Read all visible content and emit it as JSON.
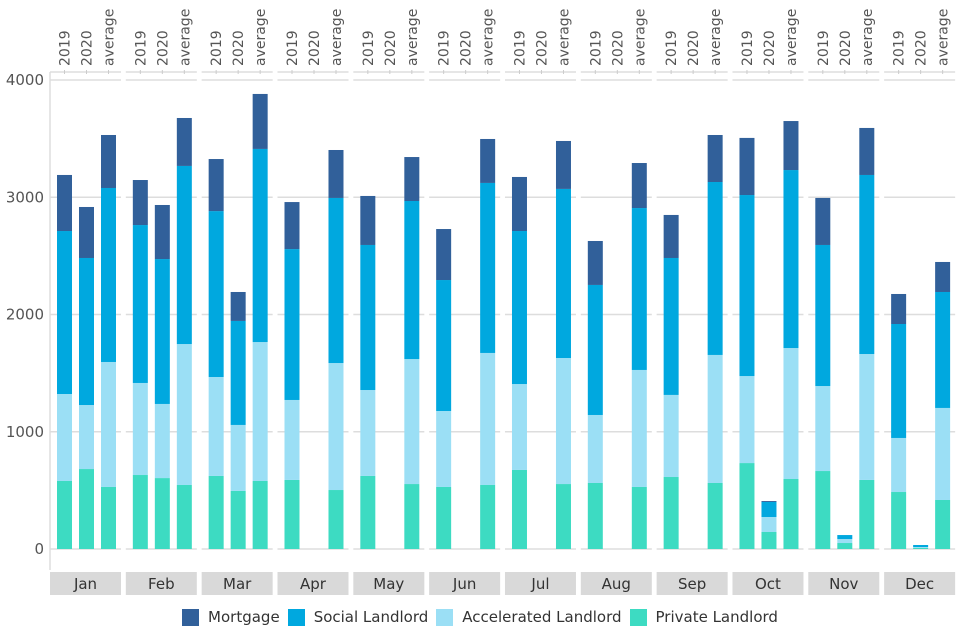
{
  "colors": {
    "Mortgage": "#31609a",
    "Social Landlord": "#00a8df",
    "Accelerated Landlord": "#9bdff5",
    "Private Landlord": "#3ddbc2",
    "grid": "#dddddd",
    "facet_strip": "#d9d9d9"
  },
  "legend": [
    {
      "name": "Mortgage"
    },
    {
      "name": "Social Landlord"
    },
    {
      "name": "Accelerated Landlord"
    },
    {
      "name": "Private Landlord"
    }
  ],
  "chart_data": {
    "type": "bar",
    "stacked": true,
    "faceted_by": "month",
    "title": "",
    "xlabel": "",
    "ylabel": "",
    "ylim": [
      0,
      4000
    ],
    "yticks": [
      0,
      1000,
      2000,
      3000,
      4000
    ],
    "grid": true,
    "legend_position": "bottom",
    "facets": [
      "Jan",
      "Feb",
      "Mar",
      "Apr",
      "May",
      "Jun",
      "Jul",
      "Aug",
      "Sep",
      "Oct",
      "Nov",
      "Dec"
    ],
    "categories": [
      "2019",
      "2020",
      "average"
    ],
    "series_order": [
      "Private Landlord",
      "Accelerated Landlord",
      "Social Landlord",
      "Mortgage"
    ],
    "values": {
      "Jan": {
        "2019": {
          "Private Landlord": 580,
          "Accelerated Landlord": 742,
          "Social Landlord": 1390,
          "Mortgage": 478
        },
        "2020": {
          "Private Landlord": 682,
          "Accelerated Landlord": 546,
          "Social Landlord": 1254,
          "Mortgage": 435
        },
        "average": {
          "Private Landlord": 529,
          "Accelerated Landlord": 1066,
          "Social Landlord": 1484,
          "Mortgage": 452
        }
      },
      "Feb": {
        "2019": {
          "Private Landlord": 631,
          "Accelerated Landlord": 785,
          "Social Landlord": 1347,
          "Mortgage": 384
        },
        "2020": {
          "Private Landlord": 605,
          "Accelerated Landlord": 632,
          "Social Landlord": 1236,
          "Mortgage": 461
        },
        "average": {
          "Private Landlord": 546,
          "Accelerated Landlord": 1202,
          "Social Landlord": 1519,
          "Mortgage": 409
        }
      },
      "Mar": {
        "2019": {
          "Private Landlord": 623,
          "Accelerated Landlord": 844,
          "Social Landlord": 1415,
          "Mortgage": 444
        },
        "2020": {
          "Private Landlord": 495,
          "Accelerated Landlord": 563,
          "Social Landlord": 887,
          "Mortgage": 247
        },
        "average": {
          "Private Landlord": 580,
          "Accelerated Landlord": 1185,
          "Social Landlord": 1647,
          "Mortgage": 469
        }
      },
      "Apr": {
        "2019": {
          "Private Landlord": 589,
          "Accelerated Landlord": 682,
          "Social Landlord": 1287,
          "Mortgage": 401
        },
        "2020": {
          "Private Landlord": 0,
          "Accelerated Landlord": 0,
          "Social Landlord": 0,
          "Mortgage": 0
        },
        "average": {
          "Private Landlord": 503,
          "Accelerated Landlord": 1083,
          "Social Landlord": 1408,
          "Mortgage": 409
        }
      },
      "May": {
        "2019": {
          "Private Landlord": 623,
          "Accelerated Landlord": 733,
          "Social Landlord": 1237,
          "Mortgage": 418
        },
        "2020": {
          "Private Landlord": 0,
          "Accelerated Landlord": 0,
          "Social Landlord": 0,
          "Mortgage": 0
        },
        "average": {
          "Private Landlord": 554,
          "Accelerated Landlord": 1066,
          "Social Landlord": 1348,
          "Mortgage": 375
        }
      },
      "Jun": {
        "2019": {
          "Private Landlord": 529,
          "Accelerated Landlord": 648,
          "Social Landlord": 1117,
          "Mortgage": 435
        },
        "2020": {
          "Private Landlord": 0,
          "Accelerated Landlord": 0,
          "Social Landlord": 0,
          "Mortgage": 0
        },
        "average": {
          "Private Landlord": 546,
          "Accelerated Landlord": 1126,
          "Social Landlord": 1450,
          "Mortgage": 375
        }
      },
      "Jul": {
        "2019": {
          "Private Landlord": 674,
          "Accelerated Landlord": 733,
          "Social Landlord": 1305,
          "Mortgage": 461
        },
        "2020": {
          "Private Landlord": 0,
          "Accelerated Landlord": 0,
          "Social Landlord": 0,
          "Mortgage": 0
        },
        "average": {
          "Private Landlord": 554,
          "Accelerated Landlord": 1075,
          "Social Landlord": 1442,
          "Mortgage": 409
        }
      },
      "Aug": {
        "2019": {
          "Private Landlord": 563,
          "Accelerated Landlord": 580,
          "Social Landlord": 1109,
          "Mortgage": 375
        },
        "2020": {
          "Private Landlord": 0,
          "Accelerated Landlord": 0,
          "Social Landlord": 0,
          "Mortgage": 0
        },
        "average": {
          "Private Landlord": 529,
          "Accelerated Landlord": 998,
          "Social Landlord": 1381,
          "Mortgage": 384
        }
      },
      "Sep": {
        "2019": {
          "Private Landlord": 614,
          "Accelerated Landlord": 700,
          "Social Landlord": 1168,
          "Mortgage": 367
        },
        "2020": {
          "Private Landlord": 0,
          "Accelerated Landlord": 0,
          "Social Landlord": 0,
          "Mortgage": 0
        },
        "average": {
          "Private Landlord": 563,
          "Accelerated Landlord": 1092,
          "Social Landlord": 1475,
          "Mortgage": 401
        }
      },
      "Oct": {
        "2019": {
          "Private Landlord": 733,
          "Accelerated Landlord": 742,
          "Social Landlord": 1544,
          "Mortgage": 487
        },
        "2020": {
          "Private Landlord": 145,
          "Accelerated Landlord": 128,
          "Social Landlord": 128,
          "Mortgage": 8
        },
        "average": {
          "Private Landlord": 597,
          "Accelerated Landlord": 1117,
          "Social Landlord": 1518,
          "Mortgage": 418
        }
      },
      "Nov": {
        "2019": {
          "Private Landlord": 665,
          "Accelerated Landlord": 725,
          "Social Landlord": 1203,
          "Mortgage": 401
        },
        "2020": {
          "Private Landlord": 51,
          "Accelerated Landlord": 34,
          "Social Landlord": 34,
          "Mortgage": 0
        },
        "average": {
          "Private Landlord": 589,
          "Accelerated Landlord": 1074,
          "Social Landlord": 1527,
          "Mortgage": 401
        }
      },
      "Dec": {
        "2019": {
          "Private Landlord": 486,
          "Accelerated Landlord": 461,
          "Social Landlord": 972,
          "Mortgage": 256
        },
        "2020": {
          "Private Landlord": 9,
          "Accelerated Landlord": 8,
          "Social Landlord": 17,
          "Mortgage": 0
        },
        "average": {
          "Private Landlord": 418,
          "Accelerated Landlord": 785,
          "Social Landlord": 989,
          "Mortgage": 256
        }
      }
    }
  }
}
